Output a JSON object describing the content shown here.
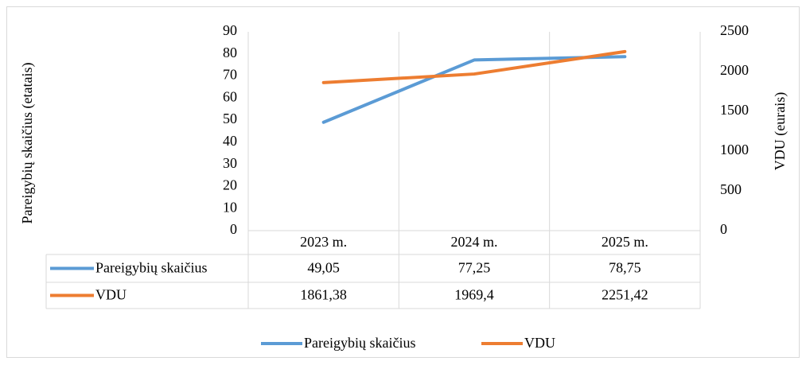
{
  "chart_data": {
    "type": "line",
    "categories": [
      "2023 m.",
      "2024 m.",
      "2025 m."
    ],
    "series": [
      {
        "name": "Pareigybių skaičius",
        "color": "#5b9bd5",
        "values": [
          49.05,
          77.25,
          78.75
        ],
        "value_labels": [
          "49,05",
          "77,25",
          "78,75"
        ]
      },
      {
        "name": "VDU",
        "color": "#ed7d31",
        "axis": "y2",
        "values": [
          1861.38,
          1969.4,
          2251.42
        ],
        "value_labels": [
          "1861,38",
          "1969,4",
          "2251,42"
        ]
      }
    ],
    "ylabel": "Pareigybių skaičius (etatais)",
    "y2label": "VDU (eurais)",
    "ylim": [
      0,
      90
    ],
    "yticks": [
      0,
      10,
      20,
      30,
      40,
      50,
      60,
      70,
      80,
      90
    ],
    "y2lim": [
      0,
      2500
    ],
    "y2ticks": [
      0,
      500,
      1000,
      1500,
      2000,
      2500
    ],
    "data_table": true,
    "legend": "bottom"
  }
}
